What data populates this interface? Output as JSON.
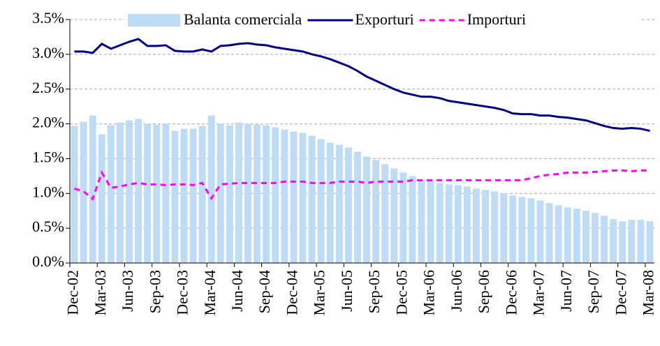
{
  "chart_data": {
    "type": "bar-line",
    "categories": [
      "Dec-02",
      null,
      null,
      "Mar-03",
      null,
      null,
      "Jun-03",
      null,
      null,
      "Sep-03",
      null,
      null,
      "Dec-03",
      null,
      null,
      "Mar-04",
      null,
      null,
      "Jun-04",
      null,
      null,
      "Sep-04",
      null,
      null,
      "Dec-04",
      null,
      null,
      "Mar-05",
      null,
      null,
      "Jun-05",
      null,
      null,
      "Sep-05",
      null,
      null,
      "Dec-05",
      null,
      null,
      "Mar-06",
      null,
      null,
      "Jun-06",
      null,
      null,
      "Sep-06",
      null,
      null,
      "Dec-06",
      null,
      null,
      "Mar-07",
      null,
      null,
      "Jun-07",
      null,
      null,
      "Sep-07",
      null,
      null,
      "Dec-07",
      null,
      null,
      "Mar-08"
    ],
    "series": [
      {
        "name": "Balanta comerciala",
        "kind": "bar",
        "color": "#bfdcf7",
        "values": [
          1.97,
          2.03,
          2.12,
          1.85,
          1.98,
          2.02,
          2.05,
          2.07,
          2.0,
          1.99,
          2.0,
          1.9,
          1.93,
          1.93,
          1.97,
          2.12,
          2.0,
          1.98,
          2.02,
          2.0,
          1.99,
          1.98,
          1.95,
          1.92,
          1.89,
          1.87,
          1.83,
          1.78,
          1.73,
          1.7,
          1.66,
          1.6,
          1.53,
          1.48,
          1.42,
          1.36,
          1.3,
          1.25,
          1.2,
          1.18,
          1.15,
          1.13,
          1.12,
          1.1,
          1.07,
          1.05,
          1.03,
          1.0,
          0.97,
          0.95,
          0.93,
          0.9,
          0.86,
          0.83,
          0.8,
          0.78,
          0.75,
          0.72,
          0.68,
          0.63,
          0.6,
          0.62,
          0.62,
          0.6
        ]
      },
      {
        "name": "Exporturi",
        "kind": "line",
        "color": "#000080",
        "values": [
          3.04,
          3.04,
          3.02,
          3.15,
          3.08,
          3.13,
          3.18,
          3.22,
          3.12,
          3.12,
          3.13,
          3.05,
          3.04,
          3.04,
          3.07,
          3.04,
          3.12,
          3.13,
          3.15,
          3.16,
          3.14,
          3.13,
          3.1,
          3.08,
          3.06,
          3.04,
          3.0,
          2.97,
          2.93,
          2.88,
          2.83,
          2.76,
          2.68,
          2.62,
          2.56,
          2.5,
          2.45,
          2.42,
          2.39,
          2.39,
          2.37,
          2.33,
          2.31,
          2.29,
          2.27,
          2.25,
          2.23,
          2.2,
          2.15,
          2.14,
          2.14,
          2.12,
          2.12,
          2.1,
          2.09,
          2.07,
          2.05,
          2.01,
          1.97,
          1.94,
          1.93,
          1.94,
          1.93,
          1.9
        ]
      },
      {
        "name": "Importuri",
        "kind": "dashed",
        "color": "#ff00ff",
        "values": [
          1.07,
          1.03,
          0.92,
          1.3,
          1.08,
          1.1,
          1.13,
          1.15,
          1.13,
          1.13,
          1.12,
          1.13,
          1.13,
          1.12,
          1.15,
          0.93,
          1.13,
          1.14,
          1.15,
          1.15,
          1.15,
          1.15,
          1.15,
          1.17,
          1.17,
          1.17,
          1.15,
          1.15,
          1.15,
          1.17,
          1.17,
          1.17,
          1.15,
          1.17,
          1.17,
          1.17,
          1.17,
          1.19,
          1.19,
          1.19,
          1.19,
          1.19,
          1.19,
          1.19,
          1.19,
          1.19,
          1.19,
          1.19,
          1.19,
          1.19,
          1.22,
          1.25,
          1.27,
          1.28,
          1.3,
          1.3,
          1.3,
          1.31,
          1.32,
          1.33,
          1.33,
          1.32,
          1.33,
          1.33
        ]
      }
    ],
    "ylim": [
      0,
      3.5
    ],
    "yticks": [
      {
        "value": 0,
        "label": "0.0%"
      },
      {
        "value": 0.5,
        "label": "0.5%"
      },
      {
        "value": 1,
        "label": "1.0%"
      },
      {
        "value": 1.5,
        "label": "1.5%"
      },
      {
        "value": 2,
        "label": "2.0%"
      },
      {
        "value": 2.5,
        "label": "2.5%"
      },
      {
        "value": 3,
        "label": "3.0%"
      },
      {
        "value": 3.5,
        "label": "3.5%"
      }
    ],
    "grid": true
  }
}
